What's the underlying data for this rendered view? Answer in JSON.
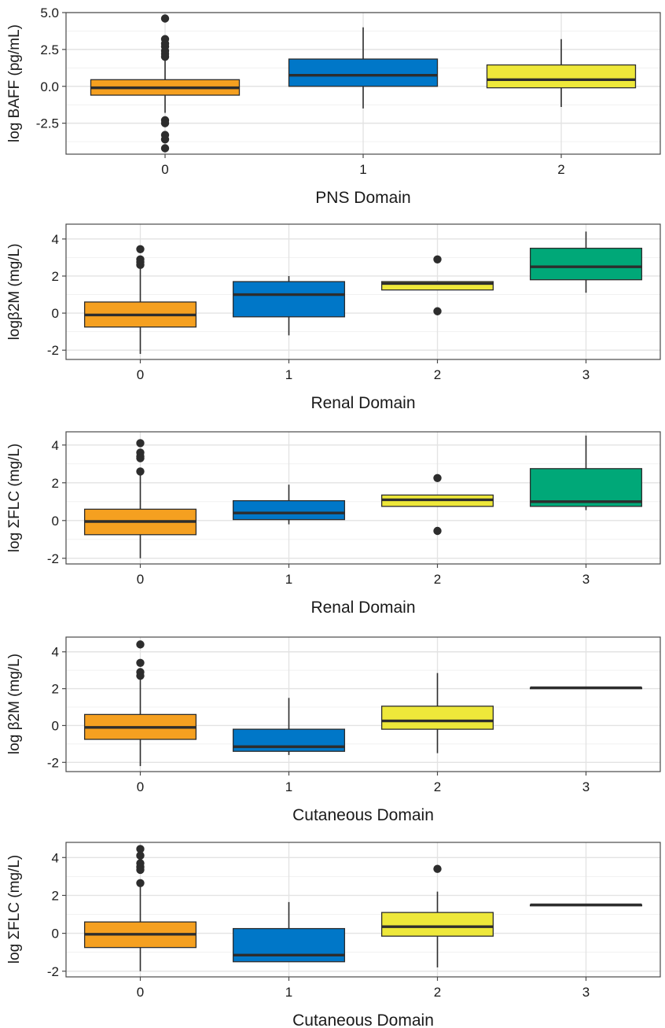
{
  "colors": {
    "category": [
      "#f5a020",
      "#0077c8",
      "#eee83a",
      "#00a878"
    ],
    "median": "#2d2d2d",
    "outline": "#2d2d2d",
    "gridMajor": "#e3e3e3",
    "gridMinor": "#f1f1f1",
    "frame": "#4a4a4a"
  },
  "chart_data": [
    {
      "type": "box",
      "xlabel": "PNS Domain",
      "ylabel": "log BAFF (pg/mL)",
      "categories": [
        "0",
        "1",
        "2"
      ],
      "ylim": [
        -4.6,
        5.0
      ],
      "yticks": [
        -2.5,
        0.0,
        2.5,
        5.0
      ],
      "ytick_labels": [
        "-2.5",
        "0.0",
        "2.5",
        "5.0"
      ],
      "boxes": [
        {
          "category": "0",
          "whisker_low": -1.8,
          "q1": -0.6,
          "median": -0.1,
          "q3": 0.45,
          "whisker_high": 1.9,
          "outliers": [
            4.6,
            3.2,
            2.9,
            2.7,
            2.4,
            2.2,
            2.0,
            -2.3,
            -2.5,
            -3.3,
            -3.6,
            -4.2
          ]
        },
        {
          "category": "1",
          "whisker_low": -1.5,
          "q1": 0.0,
          "median": 0.75,
          "q3": 1.85,
          "whisker_high": 4.0,
          "outliers": []
        },
        {
          "category": "2",
          "whisker_low": -1.4,
          "q1": -0.1,
          "median": 0.45,
          "q3": 1.45,
          "whisker_high": 3.2,
          "outliers": []
        }
      ]
    },
    {
      "type": "box",
      "xlabel": "Renal Domain",
      "ylabel": "logβ2M (mg/L)",
      "categories": [
        "0",
        "1",
        "2",
        "3"
      ],
      "ylim": [
        -2.5,
        4.8
      ],
      "yticks": [
        -2,
        0,
        2,
        4
      ],
      "ytick_labels": [
        "-2",
        "0",
        "2",
        "4"
      ],
      "boxes": [
        {
          "category": "0",
          "whisker_low": -2.2,
          "q1": -0.75,
          "median": -0.1,
          "q3": 0.6,
          "whisker_high": 2.4,
          "outliers": [
            3.45,
            2.9,
            2.75,
            2.6
          ]
        },
        {
          "category": "1",
          "whisker_low": -1.2,
          "q1": -0.2,
          "median": 1.0,
          "q3": 1.7,
          "whisker_high": 2.0,
          "outliers": []
        },
        {
          "category": "2",
          "whisker_low": 1.25,
          "q1": 1.25,
          "median": 1.6,
          "q3": 1.7,
          "whisker_high": 1.7,
          "outliers": [
            2.9,
            0.1
          ]
        },
        {
          "category": "3",
          "whisker_low": 1.1,
          "q1": 1.8,
          "median": 2.5,
          "q3": 3.5,
          "whisker_high": 4.4,
          "outliers": []
        }
      ]
    },
    {
      "type": "box",
      "xlabel": "Renal Domain",
      "ylabel": "log ΣFLC (mg/L)",
      "categories": [
        "0",
        "1",
        "2",
        "3"
      ],
      "ylim": [
        -2.3,
        4.7
      ],
      "yticks": [
        -2,
        0,
        2,
        4
      ],
      "ytick_labels": [
        "-2",
        "0",
        "2",
        "4"
      ],
      "boxes": [
        {
          "category": "0",
          "whisker_low": -2.0,
          "q1": -0.75,
          "median": -0.05,
          "q3": 0.6,
          "whisker_high": 2.4,
          "outliers": [
            4.1,
            3.6,
            3.4,
            3.3,
            2.6
          ]
        },
        {
          "category": "1",
          "whisker_low": -0.2,
          "q1": 0.05,
          "median": 0.4,
          "q3": 1.05,
          "whisker_high": 1.9,
          "outliers": []
        },
        {
          "category": "2",
          "whisker_low": 0.75,
          "q1": 0.75,
          "median": 1.1,
          "q3": 1.35,
          "whisker_high": 1.35,
          "outliers": [
            2.25,
            -0.55
          ]
        },
        {
          "category": "3",
          "whisker_low": 0.55,
          "q1": 0.75,
          "median": 1.0,
          "q3": 2.75,
          "whisker_high": 4.5,
          "outliers": []
        }
      ]
    },
    {
      "type": "box",
      "xlabel": "Cutaneous Domain",
      "ylabel": "log β2M (mg/L)",
      "categories": [
        "0",
        "1",
        "2",
        "3"
      ],
      "ylim": [
        -2.5,
        4.8
      ],
      "yticks": [
        -2,
        0,
        2,
        4
      ],
      "ytick_labels": [
        "-2",
        "0",
        "2",
        "4"
      ],
      "boxes": [
        {
          "category": "0",
          "whisker_low": -2.2,
          "q1": -0.75,
          "median": -0.1,
          "q3": 0.6,
          "whisker_high": 2.5,
          "outliers": [
            4.4,
            3.4,
            2.9,
            2.7
          ]
        },
        {
          "category": "1",
          "whisker_low": -1.6,
          "q1": -1.4,
          "median": -1.15,
          "q3": -0.2,
          "whisker_high": 1.5,
          "outliers": []
        },
        {
          "category": "2",
          "whisker_low": -1.5,
          "q1": -0.2,
          "median": 0.25,
          "q3": 1.05,
          "whisker_high": 2.85,
          "outliers": []
        },
        {
          "category": "3",
          "whisker_low": 2.05,
          "q1": 2.05,
          "median": 2.05,
          "q3": 2.05,
          "whisker_high": 2.05,
          "outliers": []
        }
      ]
    },
    {
      "type": "box",
      "xlabel": "Cutaneous Domain",
      "ylabel": "log ΣFLC (mg/L)",
      "categories": [
        "0",
        "1",
        "2",
        "3"
      ],
      "ylim": [
        -2.3,
        4.8
      ],
      "yticks": [
        -2,
        0,
        2,
        4
      ],
      "ytick_labels": [
        "-2",
        "0",
        "2",
        "4"
      ],
      "boxes": [
        {
          "category": "0",
          "whisker_low": -2.0,
          "q1": -0.75,
          "median": -0.05,
          "q3": 0.6,
          "whisker_high": 2.5,
          "outliers": [
            4.45,
            4.1,
            3.7,
            3.5,
            3.35,
            2.65
          ]
        },
        {
          "category": "1",
          "whisker_low": -1.5,
          "q1": -1.5,
          "median": -1.15,
          "q3": 0.25,
          "whisker_high": 1.65,
          "outliers": []
        },
        {
          "category": "2",
          "whisker_low": -1.8,
          "q1": -0.15,
          "median": 0.35,
          "q3": 1.1,
          "whisker_high": 2.2,
          "outliers": [
            3.4
          ]
        },
        {
          "category": "3",
          "whisker_low": 1.5,
          "q1": 1.5,
          "median": 1.5,
          "q3": 1.5,
          "whisker_high": 1.5,
          "outliers": []
        }
      ]
    }
  ]
}
